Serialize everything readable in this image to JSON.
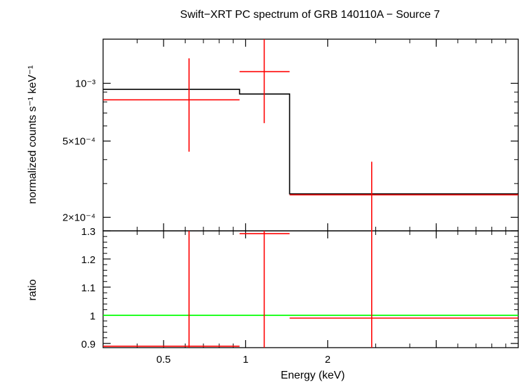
{
  "chart_data": [
    {
      "type": "line",
      "title": "Swift−XRT PC spectrum of GRB 140110A − Source 7",
      "ylabel": "normalized counts s⁻¹ keV⁻¹",
      "xlabel": "",
      "x_scale": "log",
      "y_scale": "log",
      "xlim": [
        0.3,
        10
      ],
      "ylim": [
        0.00017,
        0.0017
      ],
      "y_tick_labels": [
        {
          "value": 0.001,
          "label": "10⁻³"
        },
        {
          "value": 0.0005,
          "label": "5×10⁻⁴"
        },
        {
          "value": 0.0002,
          "label": "2×10⁻⁴"
        }
      ],
      "model": {
        "color": "#000000",
        "steps": [
          {
            "x0": 0.3,
            "x1": 0.95,
            "y": 0.00093
          },
          {
            "x0": 0.95,
            "x1": 1.45,
            "y": 0.00088
          },
          {
            "x0": 1.45,
            "x1": 10,
            "y": 0.000265
          }
        ]
      },
      "data": {
        "color": "#ff0000",
        "points": [
          {
            "x": 0.62,
            "xlo": 0.3,
            "xhi": 0.95,
            "y": 0.00082,
            "ylo": 0.00044,
            "yhi": 0.00135
          },
          {
            "x": 1.17,
            "xlo": 0.95,
            "xhi": 1.45,
            "y": 0.00115,
            "ylo": 0.00062,
            "yhi": 0.0018
          },
          {
            "x": 2.9,
            "xlo": 1.45,
            "xhi": 10,
            "y": 0.000262,
            "ylo": 0.00013,
            "yhi": 0.00039
          }
        ]
      }
    },
    {
      "type": "line",
      "ylabel": "ratio",
      "xlabel": "Energy (keV)",
      "x_scale": "log",
      "xlim": [
        0.3,
        10
      ],
      "ylim": [
        0.885,
        1.3
      ],
      "x_tick_labels": [
        {
          "value": 0.5,
          "label": "0.5"
        },
        {
          "value": 1,
          "label": "1"
        },
        {
          "value": 2,
          "label": "2"
        }
      ],
      "y_tick_labels": [
        {
          "value": 0.9,
          "label": "0.9"
        },
        {
          "value": 1.0,
          "label": "1"
        },
        {
          "value": 1.1,
          "label": "1.1"
        },
        {
          "value": 1.2,
          "label": "1.2"
        },
        {
          "value": 1.3,
          "label": "1.3"
        }
      ],
      "reference_line": {
        "y": 1.0,
        "color": "#00ff00"
      },
      "data": {
        "color": "#ff0000",
        "points": [
          {
            "x": 0.62,
            "xlo": 0.3,
            "xhi": 0.95,
            "y": 0.89,
            "ylo": 0.7,
            "yhi": 1.5
          },
          {
            "x": 1.17,
            "xlo": 0.95,
            "xhi": 1.45,
            "y": 1.29,
            "ylo": 0.6,
            "yhi": 2.0
          },
          {
            "x": 2.9,
            "xlo": 1.45,
            "xhi": 10,
            "y": 0.99,
            "ylo": 0.5,
            "yhi": 1.5
          }
        ]
      }
    }
  ]
}
